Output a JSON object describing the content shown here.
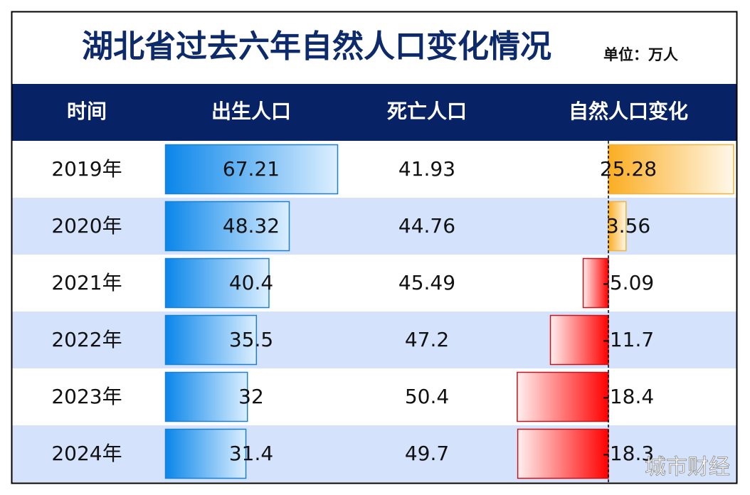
{
  "header": {
    "title": "湖北省过去六年自然人口变化情况",
    "unit": "单位：万人"
  },
  "table": {
    "columns": [
      "时间",
      "出生人口",
      "死亡人口",
      "自然人口变化"
    ],
    "rows": [
      [
        "2019年",
        67.21,
        41.93,
        25.28
      ],
      [
        "2020年",
        48.32,
        44.76,
        3.56
      ],
      [
        "2021年",
        40.4,
        45.49,
        -5.09
      ],
      [
        "2022年",
        35.5,
        47.2,
        -11.7
      ],
      [
        "2023年",
        32,
        50.4,
        -18.4
      ],
      [
        "2024年",
        31.4,
        49.7,
        -18.3
      ]
    ]
  },
  "watermark": "城市财经"
}
